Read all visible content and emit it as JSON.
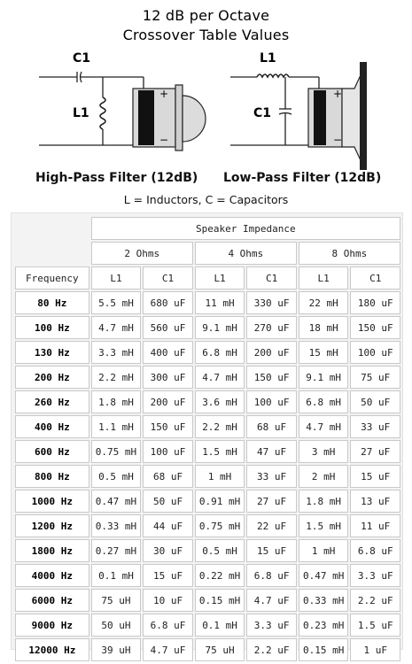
{
  "title": {
    "line1": "12 dB per Octave",
    "line2": "Crossover Table Values"
  },
  "diagrams": {
    "high_pass": {
      "caption": "High-Pass Filter (12dB)",
      "c_label": "C1",
      "l_label": "L1"
    },
    "low_pass": {
      "caption": "Low-Pass Filter (12dB)",
      "l_label": "L1",
      "c_label": "C1"
    },
    "plus": "+",
    "minus": "−"
  },
  "legend": "L = Inductors, C = Capacitors",
  "table": {
    "group_header": "Speaker Impedance",
    "impedances": [
      "2 Ohms",
      "4 Ohms",
      "8 Ohms"
    ],
    "freq_header": "Frequency",
    "sub_headers": [
      "L1",
      "C1",
      "L1",
      "C1",
      "L1",
      "C1"
    ],
    "rows": [
      {
        "freq": "80 Hz",
        "v": [
          "5.5 mH",
          "680 uF",
          "11 mH",
          "330 uF",
          "22 mH",
          "180 uF"
        ]
      },
      {
        "freq": "100 Hz",
        "v": [
          "4.7 mH",
          "560 uF",
          "9.1 mH",
          "270 uF",
          "18 mH",
          "150 uF"
        ]
      },
      {
        "freq": "130 Hz",
        "v": [
          "3.3 mH",
          "400 uF",
          "6.8 mH",
          "200 uF",
          "15 mH",
          "100 uF"
        ]
      },
      {
        "freq": "200 Hz",
        "v": [
          "2.2 mH",
          "300 uF",
          "4.7 mH",
          "150 uF",
          "9.1 mH",
          "75 uF"
        ]
      },
      {
        "freq": "260 Hz",
        "v": [
          "1.8 mH",
          "200 uF",
          "3.6 mH",
          "100 uF",
          "6.8 mH",
          "50 uF"
        ]
      },
      {
        "freq": "400 Hz",
        "v": [
          "1.1 mH",
          "150 uF",
          "2.2 mH",
          "68 uF",
          "4.7 mH",
          "33 uF"
        ]
      },
      {
        "freq": "600 Hz",
        "v": [
          "0.75 mH",
          "100 uF",
          "1.5 mH",
          "47 uF",
          "3 mH",
          "27 uF"
        ]
      },
      {
        "freq": "800 Hz",
        "v": [
          "0.5 mH",
          "68 uF",
          "1 mH",
          "33 uF",
          "2 mH",
          "15 uF"
        ]
      },
      {
        "freq": "1000 Hz",
        "v": [
          "0.47 mH",
          "50 uF",
          "0.91 mH",
          "27 uF",
          "1.8 mH",
          "13 uF"
        ]
      },
      {
        "freq": "1200 Hz",
        "v": [
          "0.33 mH",
          "44 uF",
          "0.75 mH",
          "22 uF",
          "1.5 mH",
          "11 uF"
        ]
      },
      {
        "freq": "1800 Hz",
        "v": [
          "0.27 mH",
          "30 uF",
          "0.5 mH",
          "15 uF",
          "1 mH",
          "6.8 uF"
        ]
      },
      {
        "freq": "4000 Hz",
        "v": [
          "0.1 mH",
          "15 uF",
          "0.22 mH",
          "6.8 uF",
          "0.47 mH",
          "3.3 uF"
        ]
      },
      {
        "freq": "6000 Hz",
        "v": [
          "75 uH",
          "10 uF",
          "0.15 mH",
          "4.7 uF",
          "0.33 mH",
          "2.2 uF"
        ]
      },
      {
        "freq": "9000 Hz",
        "v": [
          "50 uH",
          "6.8 uF",
          "0.1 mH",
          "3.3 uF",
          "0.23 mH",
          "1.5 uF"
        ]
      },
      {
        "freq": "12000 Hz",
        "v": [
          "39 uH",
          "4.7 uF",
          "75 uH",
          "2.2 uF",
          "0.15 mH",
          "1 uF"
        ]
      }
    ]
  }
}
